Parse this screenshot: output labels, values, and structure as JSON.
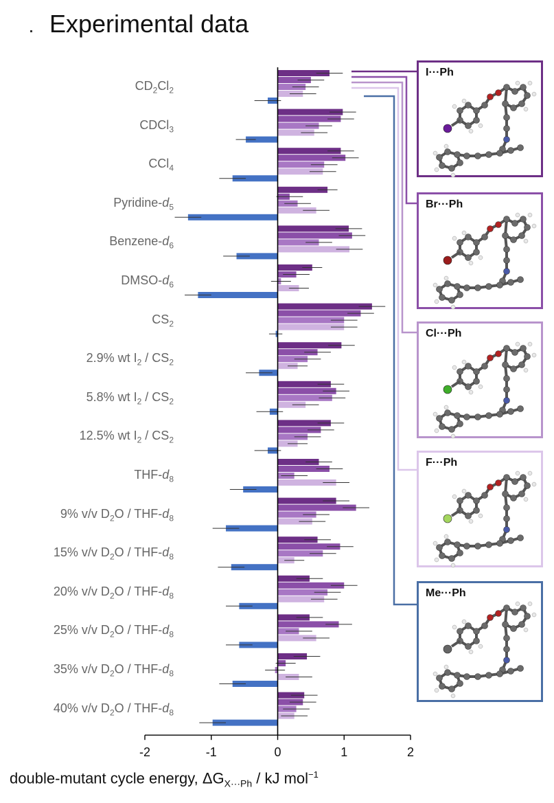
{
  "title": "Experimental data",
  "chart_data": {
    "type": "bar",
    "orientation": "horizontal",
    "title": "Experimental data",
    "xlabel": "double-mutant cycle energy, ΔG",
    "xlabel_subscript": "X···Ph",
    "xlabel_units": " / kJ mol",
    "xlabel_units_sup": "−1",
    "xlim": [
      -2,
      2
    ],
    "xticks": [
      "-2",
      "-1",
      "0",
      "1",
      "2"
    ],
    "categories": [
      "CD2Cl2",
      "CDCl3",
      "CCl4",
      "Pyridine-d5",
      "Benzene-d6",
      "DMSO-d6",
      "CS2",
      "2.9% wt I2 / CS2",
      "5.8% wt I2 / CS2",
      "12.5% wt I2 / CS2",
      "THF-d8",
      "9% v/v D2O / THF-d8",
      "15% v/v D2O / THF-d8",
      "20% v/v D2O / THF-d8",
      "25% v/v D2O / THF-d8",
      "35% v/v D2O / THF-d8",
      "40% v/v D2O / THF-d8"
    ],
    "series": [
      {
        "name": "I···Ph",
        "color": "#6d2f86",
        "values": [
          0.78,
          0.98,
          0.95,
          0.75,
          1.07,
          0.52,
          1.42,
          0.96,
          0.8,
          0.8,
          0.62,
          0.88,
          0.6,
          0.48,
          0.48,
          0.44,
          0.4
        ],
        "errors": [
          0.2,
          0.2,
          0.2,
          0.15,
          0.2,
          0.15,
          0.2,
          0.2,
          0.2,
          0.2,
          0.2,
          0.2,
          0.2,
          0.2,
          0.2,
          0.2,
          0.2
        ]
      },
      {
        "name": "Br···Ph",
        "color": "#8b4fa8",
        "values": [
          0.5,
          0.95,
          1.02,
          0.18,
          1.12,
          0.28,
          1.25,
          0.6,
          0.88,
          0.65,
          0.78,
          1.18,
          0.94,
          1.0,
          0.92,
          0.12,
          0.38
        ],
        "errors": [
          0.2,
          0.2,
          0.2,
          0.2,
          0.2,
          0.2,
          0.2,
          0.2,
          0.2,
          0.2,
          0.2,
          0.2,
          0.2,
          0.2,
          0.2,
          0.15,
          0.2
        ]
      },
      {
        "name": "Cl···Ph",
        "color": "#a877c4",
        "values": [
          0.42,
          0.62,
          0.7,
          0.3,
          0.62,
          0.05,
          1.0,
          0.45,
          0.82,
          0.45,
          0.25,
          0.58,
          0.68,
          0.75,
          0.32,
          -0.04,
          0.28
        ],
        "errors": [
          0.2,
          0.2,
          0.2,
          0.2,
          0.2,
          0.15,
          0.2,
          0.2,
          0.2,
          0.2,
          0.2,
          0.2,
          0.2,
          0.2,
          0.2,
          0.15,
          0.2
        ]
      },
      {
        "name": "F···Ph",
        "color": "#cfb3e0",
        "values": [
          0.38,
          0.55,
          0.68,
          0.58,
          1.08,
          0.32,
          1.0,
          0.3,
          0.42,
          0.3,
          0.88,
          0.52,
          0.25,
          0.7,
          0.58,
          0.32,
          0.25
        ],
        "errors": [
          0.2,
          0.2,
          0.2,
          0.2,
          0.2,
          0.15,
          0.2,
          0.15,
          0.2,
          0.15,
          0.2,
          0.2,
          0.15,
          0.2,
          0.2,
          0.2,
          0.2
        ]
      },
      {
        "name": "Me···Ph",
        "color": "#4472c4",
        "values": [
          -0.15,
          -0.48,
          -0.68,
          -1.35,
          -0.62,
          -1.2,
          -0.03,
          -0.28,
          -0.12,
          -0.15,
          -0.52,
          -0.78,
          -0.7,
          -0.58,
          -0.58,
          -0.68,
          -0.98
        ],
        "errors": [
          0.2,
          0.15,
          0.2,
          0.2,
          0.2,
          0.2,
          0.1,
          0.2,
          0.2,
          0.2,
          0.2,
          0.2,
          0.2,
          0.2,
          0.2,
          0.2,
          0.2
        ]
      }
    ]
  },
  "labels": {
    "l0": {
      "main": "CD",
      "s1": "2",
      "mid": "Cl",
      "s2": "2"
    },
    "l1": {
      "main": "CDCl",
      "s1": "3"
    },
    "l2": {
      "main": "CCl",
      "s1": "4"
    },
    "l3": {
      "main": "Pyridine-",
      "it": "d",
      "s1": "5"
    },
    "l4": {
      "main": "Benzene-",
      "it": "d",
      "s1": "6"
    },
    "l5": {
      "main": "DMSO-",
      "it": "d",
      "s1": "6"
    },
    "l6": {
      "main": "CS",
      "s1": "2"
    },
    "l7": {
      "main": "2.9% wt I",
      "s1": "2",
      "mid": " / CS",
      "s2": "2"
    },
    "l8": {
      "main": "5.8% wt I",
      "s1": "2",
      "mid": " / CS",
      "s2": "2"
    },
    "l9": {
      "main": "12.5% wt I",
      "s1": "2",
      "mid": " / CS",
      "s2": "2"
    },
    "l10": {
      "main": "THF-",
      "it": "d",
      "s1": "8"
    },
    "l11": {
      "main": "9% v/v D",
      "s1": "2",
      "mid": "O / THF-",
      "it": "d",
      "s2": "8"
    },
    "l12": {
      "main": "15% v/v D",
      "s1": "2",
      "mid": "O / THF-",
      "it": "d",
      "s2": "8"
    },
    "l13": {
      "main": "20% v/v D",
      "s1": "2",
      "mid": "O / THF-",
      "it": "d",
      "s2": "8"
    },
    "l14": {
      "main": "25% v/v D",
      "s1": "2",
      "mid": "O / THF-",
      "it": "d",
      "s2": "8"
    },
    "l15": {
      "main": "35% v/v D",
      "s1": "2",
      "mid": "O / THF-",
      "it": "d",
      "s2": "8"
    },
    "l16": {
      "main": "40% v/v D",
      "s1": "2",
      "mid": "O / THF-",
      "it": "d",
      "s2": "8"
    }
  },
  "panels": [
    {
      "label": "I···Ph",
      "border": "#6d2f86",
      "halogen": "#6a1b9a"
    },
    {
      "label": "Br···Ph",
      "border": "#8b4fa8",
      "halogen": "#9b1c1c"
    },
    {
      "label": "Cl···Ph",
      "border": "#b894cc",
      "halogen": "#3fae2a"
    },
    {
      "label": "F···Ph",
      "border": "#dcc6ea",
      "halogen": "#a4d65e"
    },
    {
      "label": "Me···Ph",
      "border": "#4a6fa5",
      "halogen": "#666666"
    }
  ]
}
